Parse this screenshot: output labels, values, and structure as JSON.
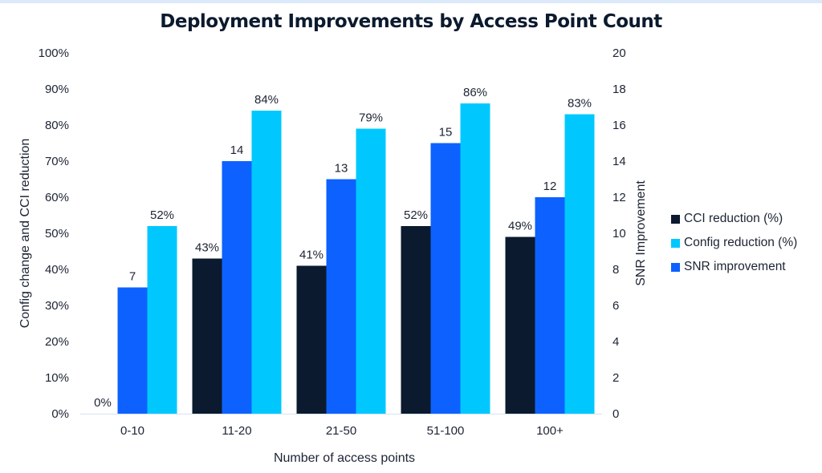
{
  "chart_data": {
    "type": "bar",
    "title": "Deployment Improvements by Access Point Count",
    "xlabel": "Number of access points",
    "ylabel": "Config change and CCI reduction",
    "y2label": "SNR Improvement",
    "categories": [
      "0-10",
      "11-20",
      "21-50",
      "51-100",
      "100+"
    ],
    "ylim": [
      0,
      100
    ],
    "y2lim": [
      0,
      20
    ],
    "yticks": [
      "0%",
      "10%",
      "20%",
      "30%",
      "40%",
      "50%",
      "60%",
      "70%",
      "80%",
      "90%",
      "100%"
    ],
    "y2ticks": [
      "0",
      "2",
      "4",
      "6",
      "8",
      "10",
      "12",
      "14",
      "16",
      "18",
      "20"
    ],
    "grid": false,
    "legend_position": "right",
    "series": [
      {
        "name": "CCI reduction (%)",
        "axis": "left",
        "color": "#0b1a2e",
        "values": [
          0,
          43,
          41,
          52,
          49
        ],
        "labels": [
          "0%",
          "43%",
          "41%",
          "52%",
          "49%"
        ]
      },
      {
        "name": "SNR improvement",
        "axis": "right",
        "color": "#0d62ff",
        "values": [
          7,
          14,
          13,
          15,
          12
        ],
        "labels": [
          "7",
          "14",
          "13",
          "15",
          "12"
        ]
      },
      {
        "name": "Config reduction (%)",
        "axis": "left",
        "color": "#00c8ff",
        "values": [
          52,
          84,
          79,
          86,
          83
        ],
        "labels": [
          "52%",
          "84%",
          "79%",
          "86%",
          "83%"
        ]
      }
    ],
    "legend_order": [
      "CCI reduction (%)",
      "Config reduction (%)",
      "SNR improvement"
    ]
  }
}
